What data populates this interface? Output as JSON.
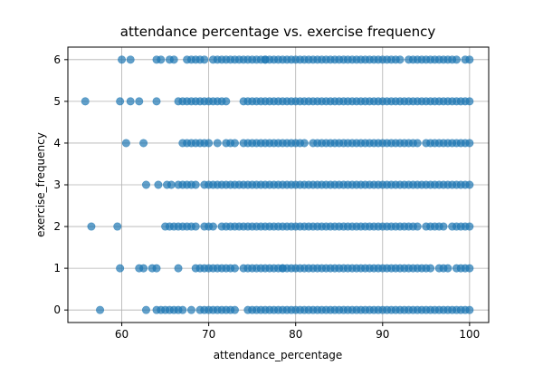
{
  "chart_data": {
    "type": "scatter",
    "title": "attendance percentage vs. exercise frequency",
    "xlabel": "attendance_percentage",
    "ylabel": "exercise_frequency",
    "xlim": [
      53.8,
      102.2
    ],
    "ylim": [
      -0.3,
      6.3
    ],
    "xticks": [
      60,
      70,
      80,
      90,
      100
    ],
    "yticks": [
      0,
      1,
      2,
      3,
      4,
      5,
      6
    ],
    "grid": true,
    "legend": "none",
    "marker_color": "#1f77b4",
    "marker_alpha": 0.7,
    "series": [
      {
        "y": 6,
        "clusters": [
          [
            60,
            60
          ],
          [
            61,
            61
          ],
          [
            64,
            64.5
          ],
          [
            65.5,
            66
          ],
          [
            67.5,
            68.5
          ],
          [
            69,
            69.5
          ],
          [
            70.5,
            72
          ],
          [
            72.5,
            76.5
          ],
          [
            76.5,
            92
          ],
          [
            93,
            96.5
          ],
          [
            97,
            98.5
          ],
          [
            99.5,
            100
          ]
        ]
      },
      {
        "y": 5,
        "clusters": [
          [
            55.8,
            55.8
          ],
          [
            59.8,
            59.8
          ],
          [
            61,
            61
          ],
          [
            62,
            62
          ],
          [
            64,
            64
          ],
          [
            66.5,
            68
          ],
          [
            68.5,
            72
          ],
          [
            74,
            76
          ],
          [
            76.5,
            95.5
          ],
          [
            96,
            97.5
          ],
          [
            98,
            100
          ]
        ]
      },
      {
        "y": 4,
        "clusters": [
          [
            60.5,
            60.5
          ],
          [
            62.5,
            62.5
          ],
          [
            67,
            70
          ],
          [
            71,
            71
          ],
          [
            72,
            73
          ],
          [
            74,
            76.5
          ],
          [
            77,
            81
          ],
          [
            82,
            94
          ],
          [
            95,
            97.5
          ],
          [
            98,
            100
          ]
        ]
      },
      {
        "y": 3,
        "clusters": [
          [
            62.8,
            63.2
          ],
          [
            64.2,
            64.2
          ],
          [
            65.2,
            66
          ],
          [
            66.5,
            68.5
          ],
          [
            69.5,
            71
          ],
          [
            71.5,
            78
          ],
          [
            78.5,
            80.5
          ],
          [
            81,
            88.5
          ],
          [
            89,
            97
          ],
          [
            97.5,
            100
          ]
        ]
      },
      {
        "y": 2,
        "clusters": [
          [
            56.5,
            56.5
          ],
          [
            59.5,
            59.5
          ],
          [
            65,
            66
          ],
          [
            66.5,
            68.5
          ],
          [
            69.5,
            70.5
          ],
          [
            71.5,
            73
          ],
          [
            73.5,
            88
          ],
          [
            88.5,
            94
          ],
          [
            95,
            97
          ],
          [
            98,
            100
          ]
        ]
      },
      {
        "y": 1,
        "clusters": [
          [
            59.8,
            59.8
          ],
          [
            62,
            62.5
          ],
          [
            63.5,
            64
          ],
          [
            66.5,
            66.5
          ],
          [
            68.5,
            73
          ],
          [
            74,
            78.5
          ],
          [
            78.5,
            92.5
          ],
          [
            93,
            95.5
          ],
          [
            96.5,
            97.5
          ],
          [
            98.5,
            100
          ]
        ]
      },
      {
        "y": 0,
        "clusters": [
          [
            57.5,
            57.5
          ],
          [
            62.8,
            63
          ],
          [
            64,
            66.5
          ],
          [
            67,
            67
          ],
          [
            68,
            68
          ],
          [
            69,
            72
          ],
          [
            72.5,
            73
          ],
          [
            74.5,
            88.5
          ],
          [
            89,
            94.5
          ],
          [
            95,
            98
          ],
          [
            98.5,
            100
          ]
        ]
      }
    ]
  }
}
